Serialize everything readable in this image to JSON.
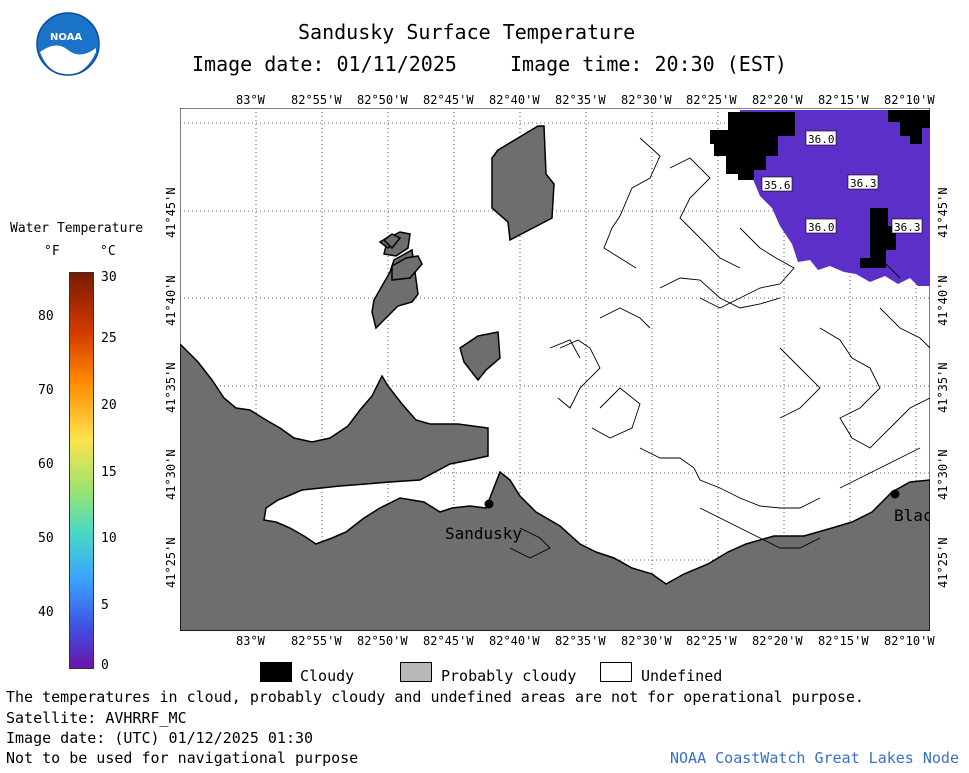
{
  "logo": {
    "text": "NOAA"
  },
  "header": {
    "title": "Sandusky Surface Temperature",
    "image_date": "Image date: 01/11/2025",
    "image_time": "Image time: 20:30 (EST)"
  },
  "colorbar": {
    "title": "Water Temperature",
    "unit_f": "°F",
    "unit_c": "°C",
    "f_ticks": [
      "80",
      "70",
      "60",
      "50",
      "40"
    ],
    "c_ticks": [
      "30",
      "25",
      "20",
      "15",
      "10",
      "5",
      "0"
    ],
    "colors": [
      "#7a1a00",
      "#d23a00",
      "#ff8c00",
      "#ffe34d",
      "#9de36f",
      "#46d9c6",
      "#3aa0ff",
      "#3f4fe0",
      "#6a14a8"
    ]
  },
  "map": {
    "lon_labels": [
      "83°W",
      "82°55'W",
      "82°50'W",
      "82°45'W",
      "82°40'W",
      "82°35'W",
      "82°30'W",
      "82°25'W",
      "82°20'W",
      "82°15'W",
      "82°10'W"
    ],
    "lat_labels": [
      "41°45'N",
      "41°40'N",
      "41°35'N",
      "41°30'N",
      "41°25'N"
    ],
    "temperature_labels": [
      "36.0",
      "35.6",
      "36.3",
      "36.0",
      "36.3"
    ],
    "places": [
      "Sandusky",
      "Blac"
    ],
    "colors": {
      "land": "#6e6e6e",
      "cloud": "#000000",
      "water_temp": "#5b2fc8",
      "undefined": "#ffffff"
    }
  },
  "legend": {
    "cloudy": "Cloudy",
    "probably_cloudy": "Probably cloudy",
    "undefined": "Undefined"
  },
  "footer": {
    "note1": "The temperatures in cloud, probably cloudy and undefined areas are not for operational purpose.",
    "satellite": "Satellite: AVHRRF_MC",
    "utc_date": "Image date: (UTC) 01/12/2025  01:30",
    "nav_note": "Not to be used for navigational purpose",
    "credit": "NOAA CoastWatch Great Lakes Node"
  }
}
